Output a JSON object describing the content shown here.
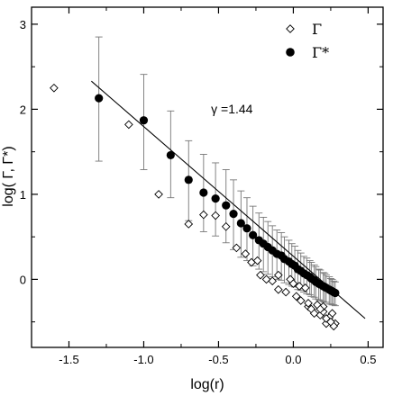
{
  "chart_data": {
    "type": "scatter",
    "xlabel": "log(r)",
    "ylabel": "log( Γ, Γ*)",
    "xlim": [
      -1.75,
      0.6
    ],
    "ylim": [
      -0.8,
      3.2
    ],
    "xticks": [
      -1.5,
      -1.0,
      -0.5,
      0.0,
      0.5
    ],
    "xtick_labels": [
      "-1.5",
      "-1.0",
      "-0.5",
      "0.0",
      "0.5"
    ],
    "yticks": [
      0,
      1,
      2,
      3
    ],
    "ytick_labels": [
      "0",
      "1",
      "2",
      "3"
    ],
    "legend": {
      "placement": "top-right",
      "entries": [
        {
          "label": "Γ",
          "marker": "open-diamond"
        },
        {
          "label": "Γ*",
          "marker": "filled-circle"
        }
      ]
    },
    "annotations": [
      {
        "text": "γ =1.44",
        "x": -0.55,
        "y": 1.95
      }
    ],
    "fit_line": {
      "x": [
        -1.35,
        0.48
      ],
      "y": [
        2.33,
        -0.46
      ],
      "slope": -1.44
    },
    "series": [
      {
        "name": "Γ",
        "marker": "open-diamond",
        "x": [
          -1.6,
          -1.1,
          -0.9,
          -0.7,
          -0.6,
          -0.52,
          -0.45,
          -0.38,
          -0.32,
          -0.28,
          -0.24,
          -0.18,
          -0.14,
          -0.1,
          -0.05,
          -0.02,
          0.0,
          0.04,
          0.08,
          0.1,
          0.12,
          0.16,
          0.18,
          0.2,
          0.22,
          0.24,
          0.26,
          0.28,
          0.05,
          0.14,
          0.2,
          0.24,
          0.27,
          -0.22,
          -0.1,
          0.02,
          0.1,
          0.18,
          0.22,
          0.25
        ],
        "y": [
          2.25,
          1.82,
          1.0,
          0.65,
          0.76,
          0.75,
          0.62,
          0.37,
          0.3,
          0.2,
          0.22,
          0.0,
          -0.02,
          0.05,
          -0.15,
          0.0,
          -0.05,
          -0.08,
          -0.1,
          -0.32,
          -0.35,
          -0.3,
          -0.42,
          -0.38,
          -0.52,
          -0.48,
          -0.4,
          -0.52,
          -0.25,
          -0.4,
          -0.32,
          -0.45,
          -0.55,
          0.05,
          -0.12,
          -0.2,
          -0.28,
          -0.35,
          -0.46,
          -0.5
        ]
      },
      {
        "name": "Γ*",
        "marker": "filled-circle",
        "x": [
          -1.3,
          -1.0,
          -0.82,
          -0.7,
          -0.6,
          -0.52,
          -0.45,
          -0.4,
          -0.35,
          -0.31,
          -0.27,
          -0.23,
          -0.2,
          -0.17,
          -0.14,
          -0.11,
          -0.08,
          -0.06,
          -0.03,
          -0.01,
          0.01,
          0.03,
          0.05,
          0.07,
          0.09,
          0.11,
          0.12,
          0.14,
          0.15,
          0.17,
          0.18,
          0.2,
          0.21,
          0.22,
          0.24,
          0.25,
          0.26,
          0.27,
          0.28
        ],
        "y": [
          2.13,
          1.87,
          1.46,
          1.17,
          1.02,
          0.95,
          0.87,
          0.77,
          0.66,
          0.6,
          0.52,
          0.46,
          0.42,
          0.38,
          0.34,
          0.3,
          0.28,
          0.24,
          0.21,
          0.18,
          0.16,
          0.12,
          0.1,
          0.07,
          0.05,
          0.03,
          0.01,
          -0.01,
          -0.03,
          -0.05,
          -0.06,
          -0.08,
          -0.09,
          -0.1,
          -0.12,
          -0.13,
          -0.14,
          -0.15,
          -0.16
        ],
        "err_upper": [
          0.72,
          0.54,
          0.52,
          0.46,
          0.45,
          0.42,
          0.42,
          0.4,
          0.38,
          0.36,
          0.34,
          0.32,
          0.31,
          0.3,
          0.29,
          0.28,
          0.27,
          0.26,
          0.25,
          0.24,
          0.23,
          0.22,
          0.21,
          0.2,
          0.2,
          0.19,
          0.19,
          0.18,
          0.18,
          0.17,
          0.17,
          0.16,
          0.16,
          0.15,
          0.15,
          0.14,
          0.14,
          0.13,
          0.13
        ],
        "err_lower": [
          0.74,
          0.58,
          0.5,
          0.48,
          0.46,
          0.44,
          0.44,
          0.42,
          0.4,
          0.38,
          0.36,
          0.34,
          0.33,
          0.32,
          0.31,
          0.3,
          0.29,
          0.28,
          0.27,
          0.26,
          0.25,
          0.24,
          0.23,
          0.22,
          0.22,
          0.21,
          0.21,
          0.2,
          0.2,
          0.19,
          0.19,
          0.18,
          0.18,
          0.17,
          0.17,
          0.16,
          0.16,
          0.15,
          0.15
        ]
      }
    ]
  }
}
